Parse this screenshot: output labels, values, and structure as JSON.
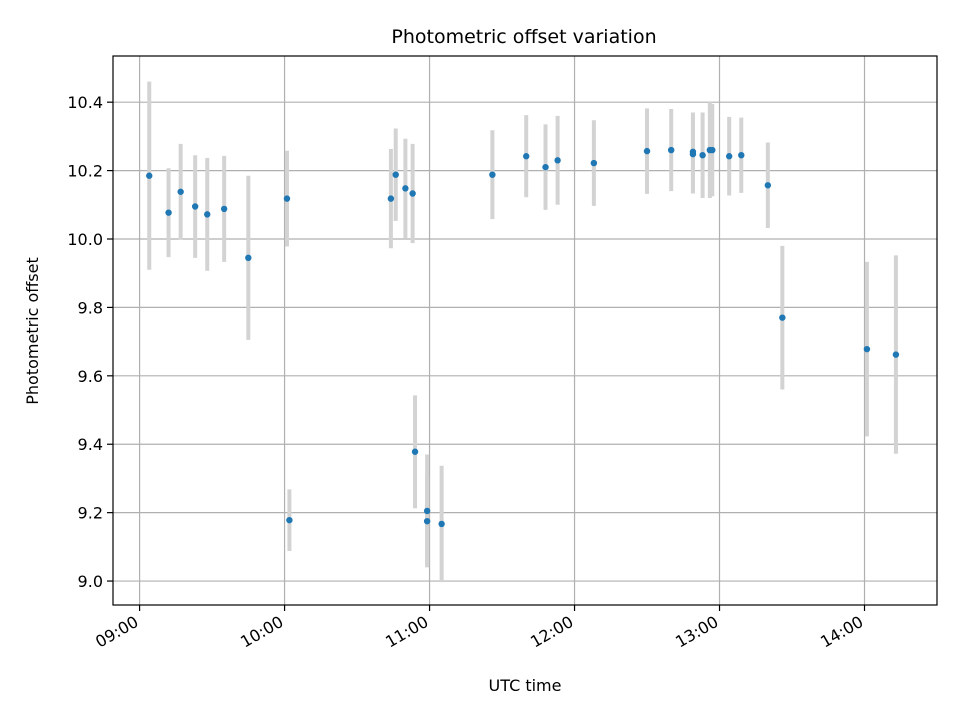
{
  "chart_data": {
    "type": "scatter",
    "title": "Photometric offset variation",
    "xlabel": "UTC time",
    "ylabel": "Photometric offset",
    "x_tick_labels": [
      "09:00",
      "10:00",
      "11:00",
      "12:00",
      "13:00",
      "14:00"
    ],
    "y_tick_labels": [
      "9.0",
      "9.2",
      "9.4",
      "9.6",
      "9.8",
      "10.0",
      "10.2",
      "10.4"
    ],
    "xlim": [
      "08:49",
      "14:30"
    ],
    "ylim": [
      8.93,
      10.535
    ],
    "grid": true,
    "marker_color": "#1f77b4",
    "errorbar_color": "#d3d3d3",
    "series": [
      {
        "points": [
          {
            "x": "09:04",
            "y": 10.185,
            "err": 0.275
          },
          {
            "x": "09:12",
            "y": 10.077,
            "err": 0.13
          },
          {
            "x": "09:17",
            "y": 10.138,
            "err": 0.14
          },
          {
            "x": "09:23",
            "y": 10.095,
            "err": 0.15
          },
          {
            "x": "09:28",
            "y": 10.072,
            "err": 0.165
          },
          {
            "x": "09:35",
            "y": 10.088,
            "err": 0.155
          },
          {
            "x": "09:45",
            "y": 9.945,
            "err": 0.24
          },
          {
            "x": "10:01",
            "y": 10.118,
            "err": 0.14
          },
          {
            "x": "10:02",
            "y": 9.178,
            "err": 0.09
          },
          {
            "x": "10:44",
            "y": 10.118,
            "err": 0.145
          },
          {
            "x": "10:46",
            "y": 10.188,
            "err": 0.135
          },
          {
            "x": "10:50",
            "y": 10.148,
            "err": 0.145
          },
          {
            "x": "10:53",
            "y": 10.133,
            "err": 0.145
          },
          {
            "x": "10:54",
            "y": 9.378,
            "err": 0.165
          },
          {
            "x": "10:59",
            "y": 9.205,
            "err": 0.165
          },
          {
            "x": "10:59",
            "y": 9.175,
            "err": 0.13
          },
          {
            "x": "11:05",
            "y": 9.167,
            "err": 0.17
          },
          {
            "x": "11:26",
            "y": 10.188,
            "err": 0.13
          },
          {
            "x": "11:40",
            "y": 10.242,
            "err": 0.12
          },
          {
            "x": "11:48",
            "y": 10.21,
            "err": 0.125
          },
          {
            "x": "11:53",
            "y": 10.23,
            "err": 0.13
          },
          {
            "x": "12:08",
            "y": 10.222,
            "err": 0.125
          },
          {
            "x": "12:30",
            "y": 10.257,
            "err": 0.125
          },
          {
            "x": "12:40",
            "y": 10.26,
            "err": 0.12
          },
          {
            "x": "12:49",
            "y": 10.255,
            "err": 0.115
          },
          {
            "x": "12:49",
            "y": 10.248,
            "err": 0.115
          },
          {
            "x": "12:53",
            "y": 10.245,
            "err": 0.125
          },
          {
            "x": "12:56",
            "y": 10.26,
            "err": 0.14
          },
          {
            "x": "12:57",
            "y": 10.26,
            "err": 0.135
          },
          {
            "x": "13:04",
            "y": 10.242,
            "err": 0.115
          },
          {
            "x": "13:09",
            "y": 10.245,
            "err": 0.11
          },
          {
            "x": "13:20",
            "y": 10.157,
            "err": 0.125
          },
          {
            "x": "13:26",
            "y": 9.77,
            "err": 0.21
          },
          {
            "x": "14:01",
            "y": 9.678,
            "err": 0.255
          },
          {
            "x": "14:13",
            "y": 9.662,
            "err": 0.29
          }
        ]
      }
    ]
  }
}
